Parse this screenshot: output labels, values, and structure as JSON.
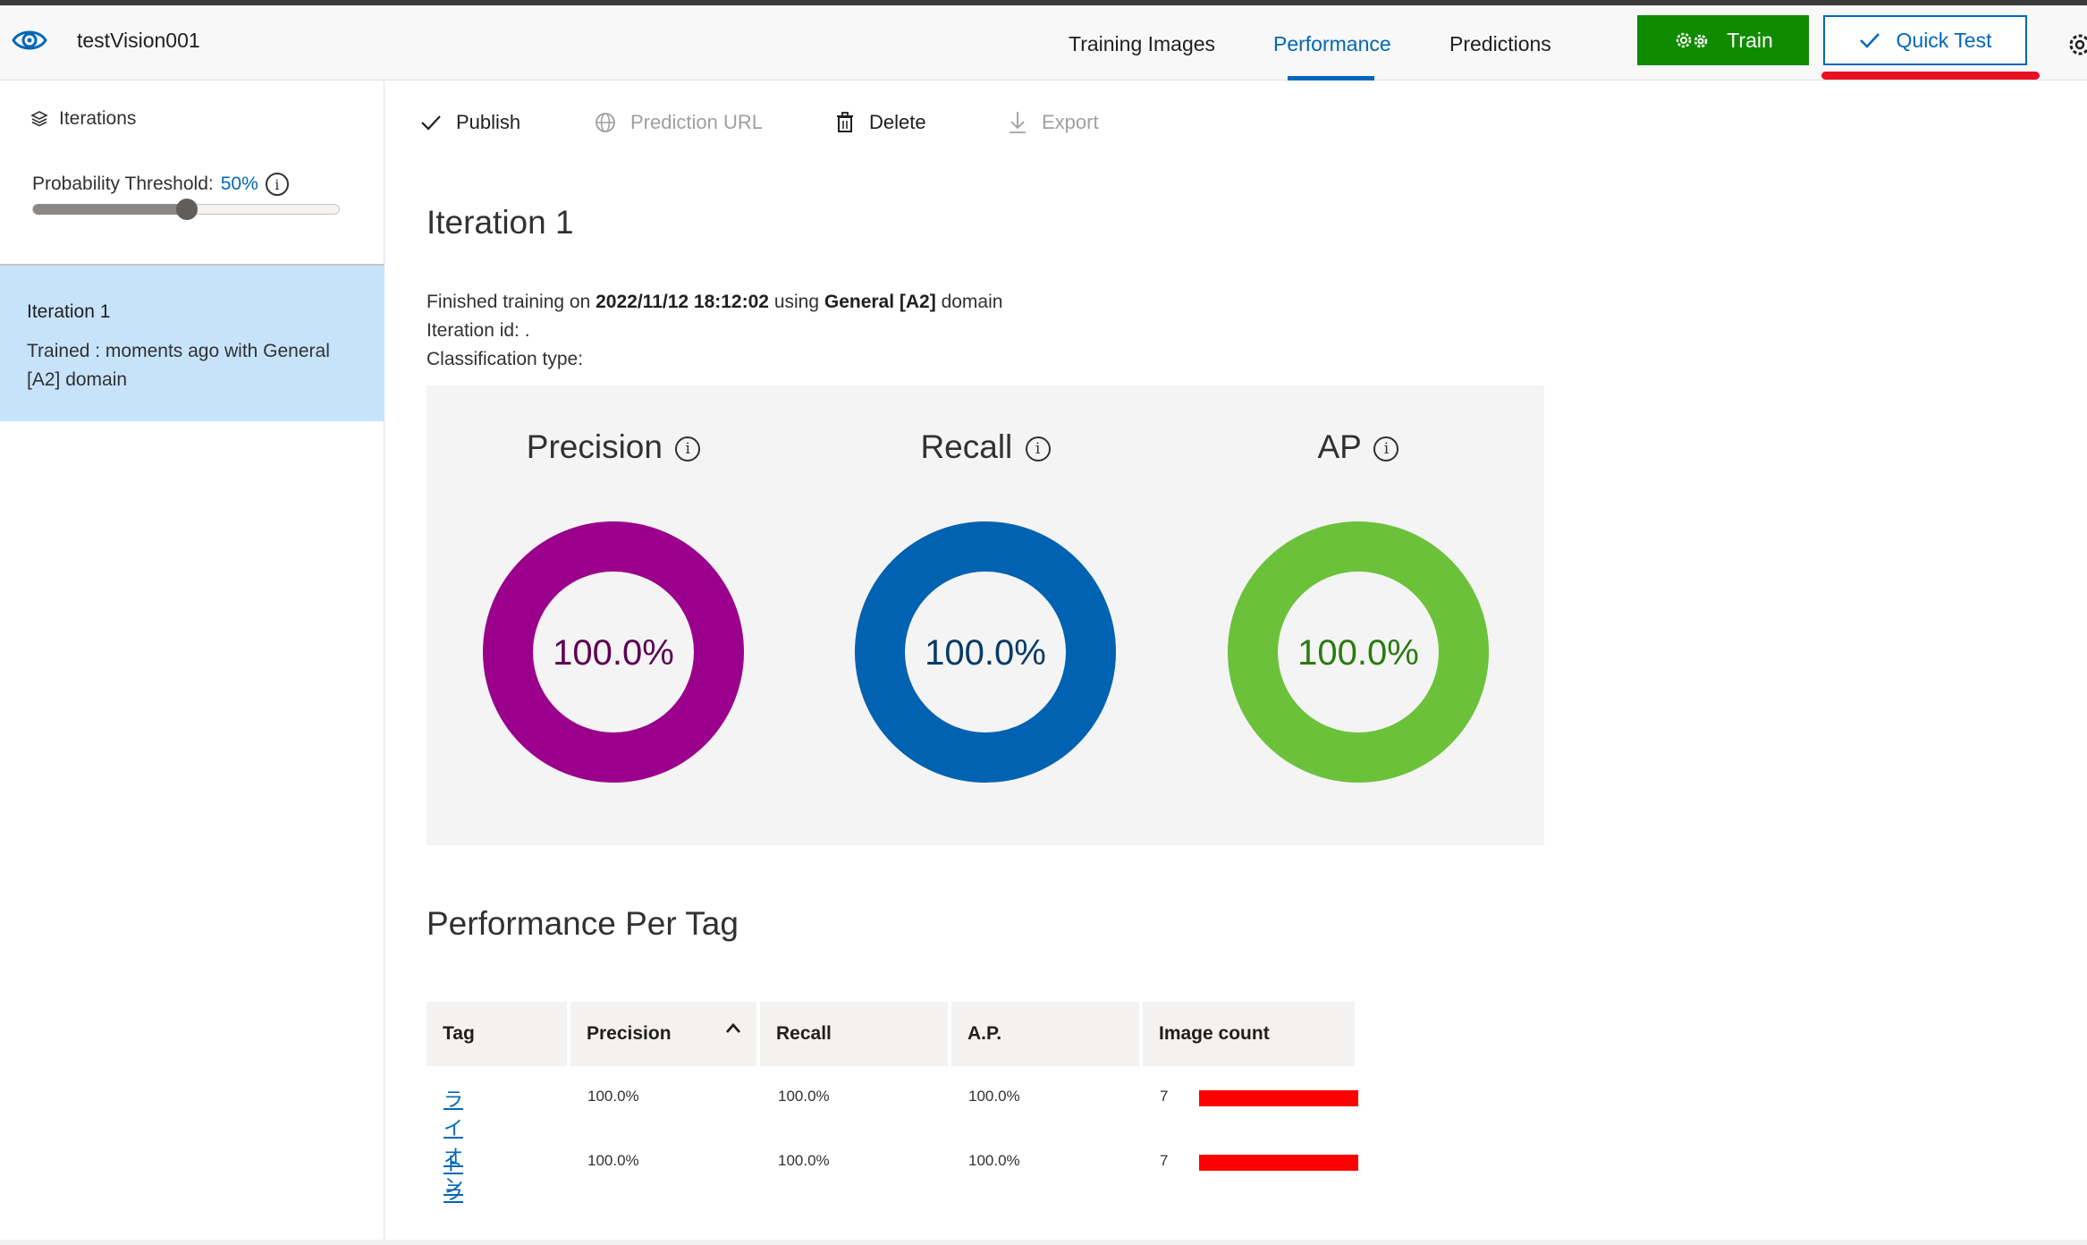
{
  "header": {
    "project_name": "testVision001",
    "tabs": [
      {
        "label": "Training Images"
      },
      {
        "label": "Performance"
      },
      {
        "label": "Predictions"
      }
    ],
    "train_label": "Train",
    "quick_test_label": "Quick Test"
  },
  "sidebar": {
    "iterations_label": "Iterations",
    "threshold_label": "Probability Threshold:",
    "threshold_value": "50%",
    "threshold_fraction": 0.5,
    "iteration_card": {
      "title": "Iteration 1",
      "subtitle": "Trained : moments ago with General [A2] domain"
    }
  },
  "toolbar": {
    "publish": "Publish",
    "prediction_url": "Prediction URL",
    "delete": "Delete",
    "export": "Export"
  },
  "main": {
    "title": "Iteration 1",
    "finished_prefix": "Finished training on",
    "finished_date": "2022/11/12 18:12:02",
    "using_word": "using",
    "domain": "General [A2]",
    "domain_word": "domain",
    "iteration_id_label": "Iteration id:",
    "iteration_id_value": ".",
    "classification_label": "Classification type:"
  },
  "metrics": [
    {
      "name": "Precision",
      "value": "100.0%",
      "fraction": 1.0,
      "color": "#9b008c",
      "text_color": "#5c0052"
    },
    {
      "name": "Recall",
      "value": "100.0%",
      "fraction": 1.0,
      "color": "#0062b1",
      "text_color": "#073a68"
    },
    {
      "name": "AP",
      "value": "100.0%",
      "fraction": 1.0,
      "color": "#6bc23a",
      "text_color": "#2b7a10"
    }
  ],
  "per_tag": {
    "title": "Performance Per Tag",
    "columns": [
      "Tag",
      "Precision",
      "Recall",
      "A.P.",
      "Image count"
    ],
    "rows": [
      {
        "tag": "ライオン",
        "precision": "100.0%",
        "recall": "100.0%",
        "ap": "100.0%",
        "count": "7",
        "count_fraction": 1.0
      },
      {
        "tag": "トラ",
        "precision": "100.0%",
        "recall": "100.0%",
        "ap": "100.0%",
        "count": "7",
        "count_fraction": 1.0
      }
    ]
  },
  "colors": {
    "accent": "#0067b8",
    "train_green": "#0f8b00",
    "selected_iteration": "#c7e3fb",
    "count_bar": "#ff0000"
  }
}
